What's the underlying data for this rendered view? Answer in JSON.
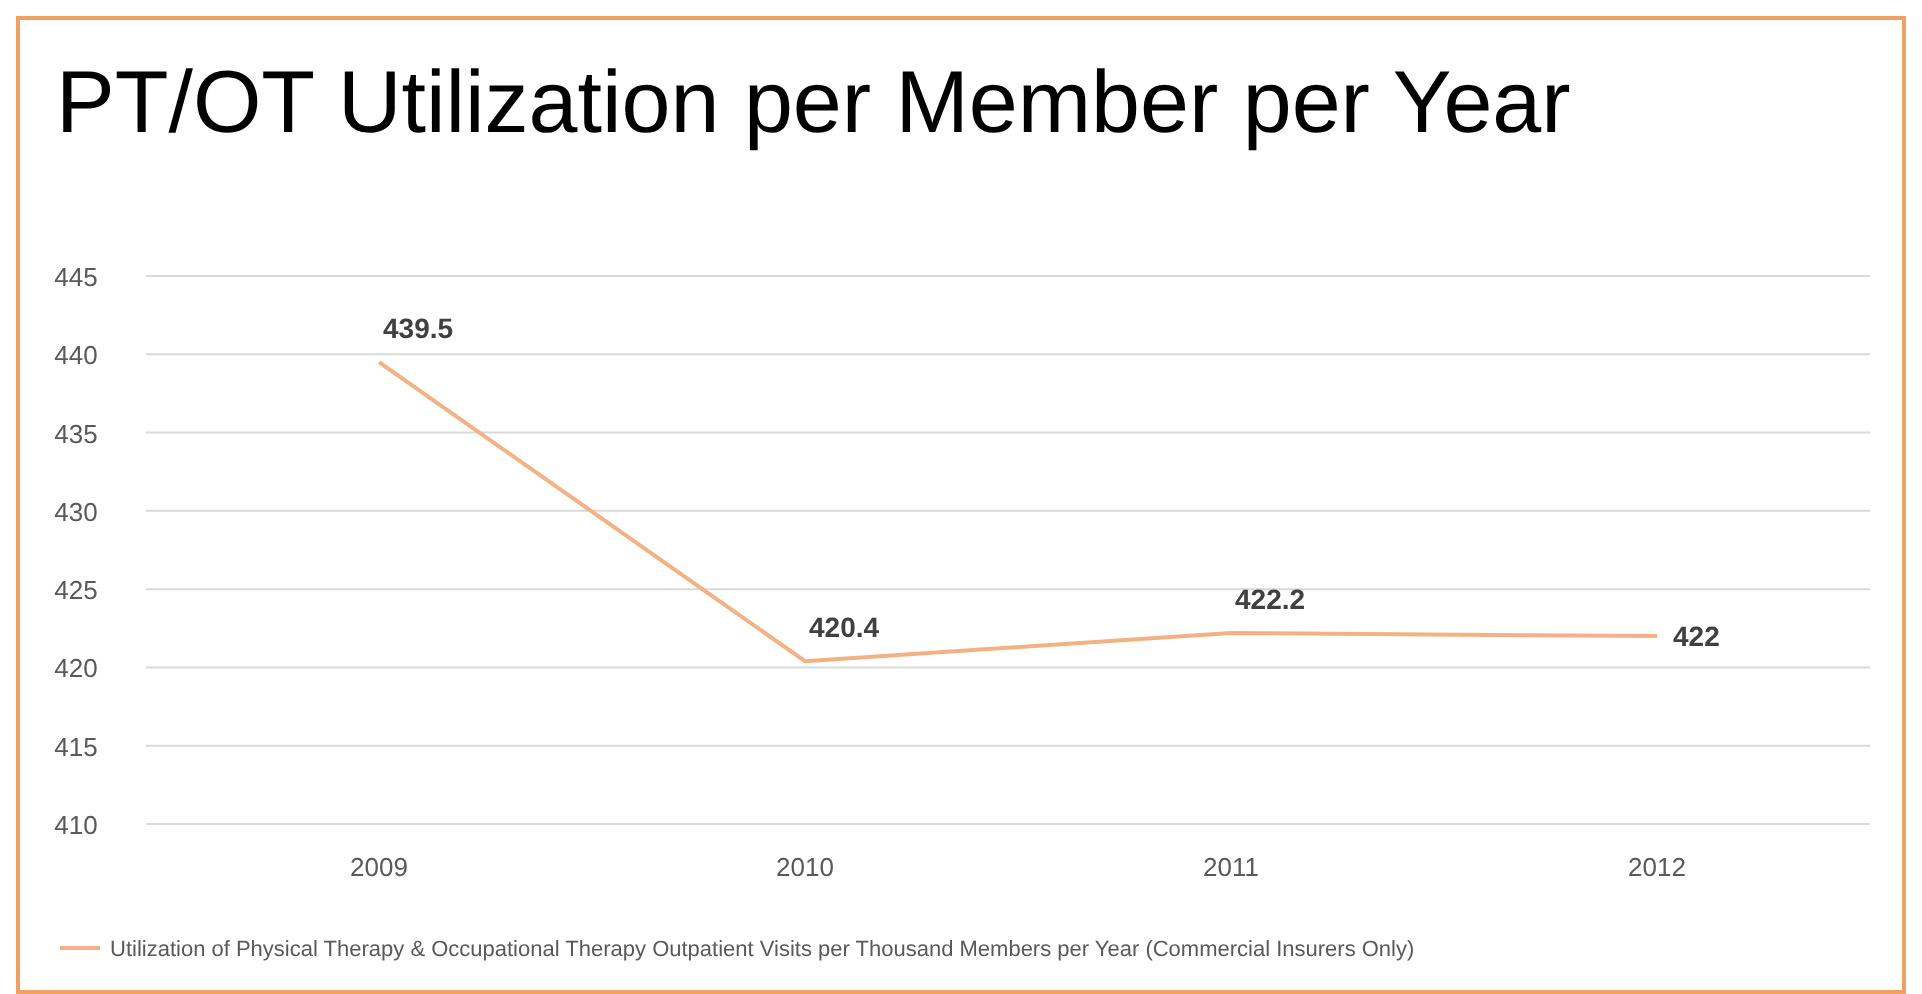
{
  "chart_data": {
    "type": "line",
    "title": "PT/OT Utilization per Member per Year",
    "categories": [
      "2009",
      "2010",
      "2011",
      "2012"
    ],
    "series": [
      {
        "name": "Utilization of Physical Therapy & Occupational Therapy Outpatient Visits per Thousand Members per Year (Commercial Insurers Only)",
        "color": "#f4b183",
        "values": [
          439.5,
          420.4,
          422.2,
          422
        ]
      }
    ],
    "ylim": [
      410,
      445
    ],
    "yticks": [
      410,
      415,
      420,
      425,
      430,
      435,
      440,
      445
    ],
    "grid": "y",
    "legend": "bottom",
    "data_labels": true,
    "marker": "none",
    "line_style": "solid"
  }
}
